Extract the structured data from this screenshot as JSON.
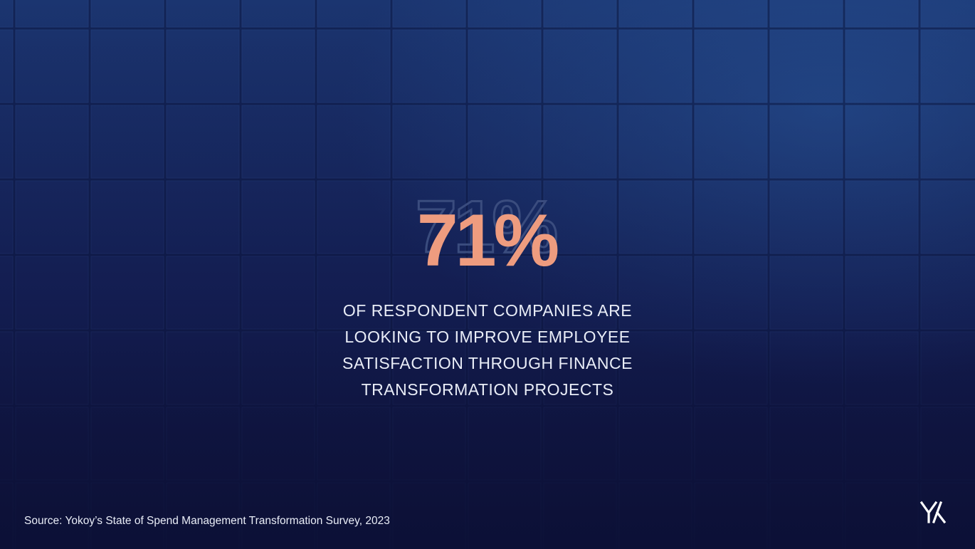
{
  "stat": "71%",
  "description": [
    "OF RESPONDENT COMPANIES ARE",
    "LOOKING TO IMPROVE EMPLOYEE",
    "SATISFACTION THROUGH FINANCE",
    "TRANSFORMATION PROJECTS"
  ],
  "source": "Source: Yokoy’s State of Spend Management Transformation Survey, 2023"
}
